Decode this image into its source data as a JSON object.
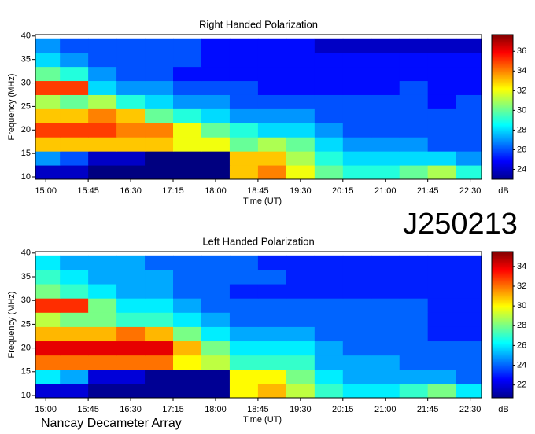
{
  "chart_data": [
    {
      "type": "heatmap",
      "title": "Right Handed Polarization",
      "xlabel": "Time (UT)",
      "ylabel": "Frequency (MHz)",
      "colorbar_label": "dB",
      "x": [
        900,
        930,
        960,
        990,
        1020,
        1050,
        1080,
        1110,
        1140,
        1170,
        1200,
        1230,
        1260,
        1290,
        1320,
        1350
      ],
      "y": [
        11,
        14,
        17,
        20,
        23,
        26,
        29,
        32,
        35,
        38
      ],
      "z": [
        [
          24,
          24,
          23,
          23,
          23,
          23,
          23,
          33,
          34,
          32,
          30,
          29,
          29,
          30,
          31,
          29
        ],
        [
          27,
          26,
          24,
          24,
          23,
          23,
          23,
          33,
          33,
          31,
          29,
          28,
          28,
          28,
          28,
          27
        ],
        [
          33,
          33,
          33,
          33,
          33,
          32,
          32,
          30,
          31,
          30,
          28,
          27,
          27,
          27,
          26,
          26
        ],
        [
          35,
          35,
          35,
          34,
          34,
          32,
          30,
          29,
          28,
          28,
          27,
          26,
          26,
          26,
          26,
          26
        ],
        [
          33,
          33,
          34,
          33,
          30,
          29,
          28,
          27,
          27,
          27,
          26,
          26,
          26,
          26,
          26,
          26
        ],
        [
          31,
          30,
          31,
          29,
          28,
          27,
          27,
          26,
          26,
          26,
          26,
          26,
          26,
          26,
          25,
          26
        ],
        [
          35,
          35,
          28,
          27,
          27,
          26,
          26,
          26,
          25,
          25,
          25,
          25,
          25,
          26,
          25,
          25
        ],
        [
          30,
          29,
          27,
          26,
          26,
          25,
          25,
          25,
          25,
          25,
          25,
          25,
          25,
          25,
          25,
          25
        ],
        [
          28,
          27,
          26,
          26,
          26,
          26,
          25,
          25,
          25,
          25,
          25,
          25,
          25,
          25,
          25,
          25
        ],
        [
          27,
          26,
          26,
          26,
          26,
          26,
          25,
          25,
          25,
          25,
          24,
          24,
          24,
          24,
          24,
          24
        ]
      ],
      "xlim": [
        889,
        1362
      ],
      "ylim": [
        9.5,
        40.3
      ],
      "xticks": [
        {
          "value": 900,
          "label": "15:00"
        },
        {
          "value": 945,
          "label": "15:45"
        },
        {
          "value": 990,
          "label": "16:30"
        },
        {
          "value": 1035,
          "label": "17:15"
        },
        {
          "value": 1080,
          "label": "18:00"
        },
        {
          "value": 1125,
          "label": "18:45"
        },
        {
          "value": 1170,
          "label": "19:30"
        },
        {
          "value": 1215,
          "label": "20:15"
        },
        {
          "value": 1260,
          "label": "21:00"
        },
        {
          "value": 1305,
          "label": "21:45"
        },
        {
          "value": 1350,
          "label": "22:30"
        }
      ],
      "yticks": [
        10,
        15,
        20,
        25,
        30,
        35,
        40
      ],
      "clim": [
        23,
        37.7
      ],
      "cticks": [
        24,
        26,
        28,
        30,
        32,
        34,
        36
      ],
      "colormap": "jet"
    },
    {
      "type": "heatmap",
      "title": "Left Handed Polarization",
      "xlabel": "Time (UT)",
      "ylabel": "Frequency (MHz)",
      "colorbar_label": "dB",
      "x": [
        900,
        930,
        960,
        990,
        1020,
        1050,
        1080,
        1110,
        1140,
        1170,
        1200,
        1230,
        1260,
        1290,
        1320,
        1350
      ],
      "y": [
        11,
        14,
        17,
        20,
        23,
        26,
        29,
        32,
        35,
        38
      ],
      "z": [
        [
          22,
          22,
          21,
          21,
          21,
          21,
          21,
          30,
          31,
          29,
          27,
          26,
          26,
          27,
          28,
          26
        ],
        [
          26,
          25,
          22,
          22,
          21,
          21,
          21,
          30,
          30,
          28,
          26,
          25,
          25,
          25,
          25,
          24
        ],
        [
          32,
          32,
          32,
          32,
          32,
          30,
          29,
          27,
          27,
          27,
          25,
          25,
          25,
          24,
          24,
          24
        ],
        [
          34,
          34,
          34,
          34,
          34,
          31,
          28,
          26,
          26,
          26,
          25,
          24,
          24,
          24,
          24,
          24
        ],
        [
          31,
          31,
          31,
          32,
          31,
          28,
          26,
          25,
          25,
          25,
          24,
          24,
          24,
          24,
          23,
          23
        ],
        [
          29,
          28,
          28,
          27,
          27,
          26,
          25,
          24,
          24,
          24,
          24,
          24,
          24,
          24,
          23,
          23
        ],
        [
          33,
          33,
          28,
          26,
          26,
          25,
          24,
          24,
          24,
          24,
          24,
          24,
          24,
          24,
          23,
          23
        ],
        [
          28,
          27,
          26,
          25,
          25,
          24,
          24,
          23,
          23,
          23,
          23,
          23,
          23,
          23,
          23,
          23
        ],
        [
          27,
          26,
          25,
          25,
          25,
          24,
          24,
          24,
          24,
          23,
          23,
          23,
          23,
          23,
          23,
          23
        ],
        [
          26,
          25,
          25,
          25,
          24,
          24,
          24,
          24,
          23,
          23,
          23,
          23,
          23,
          23,
          23,
          23
        ]
      ],
      "xlim": [
        889,
        1362
      ],
      "ylim": [
        9.5,
        40.3
      ],
      "xticks": [
        {
          "value": 900,
          "label": "15:00"
        },
        {
          "value": 945,
          "label": "15:45"
        },
        {
          "value": 990,
          "label": "16:30"
        },
        {
          "value": 1035,
          "label": "17:15"
        },
        {
          "value": 1080,
          "label": "18:00"
        },
        {
          "value": 1125,
          "label": "18:45"
        },
        {
          "value": 1170,
          "label": "19:30"
        },
        {
          "value": 1215,
          "label": "20:15"
        },
        {
          "value": 1260,
          "label": "21:00"
        },
        {
          "value": 1305,
          "label": "21:45"
        },
        {
          "value": 1350,
          "label": "22:30"
        }
      ],
      "yticks": [
        10,
        15,
        20,
        25,
        30,
        35,
        40
      ],
      "clim": [
        20.7,
        35.5
      ],
      "cticks": [
        22,
        24,
        26,
        28,
        30,
        32,
        34
      ],
      "colormap": "jet"
    }
  ],
  "labels": {
    "id": "J250213",
    "footer": "Nancay Decameter Array"
  }
}
